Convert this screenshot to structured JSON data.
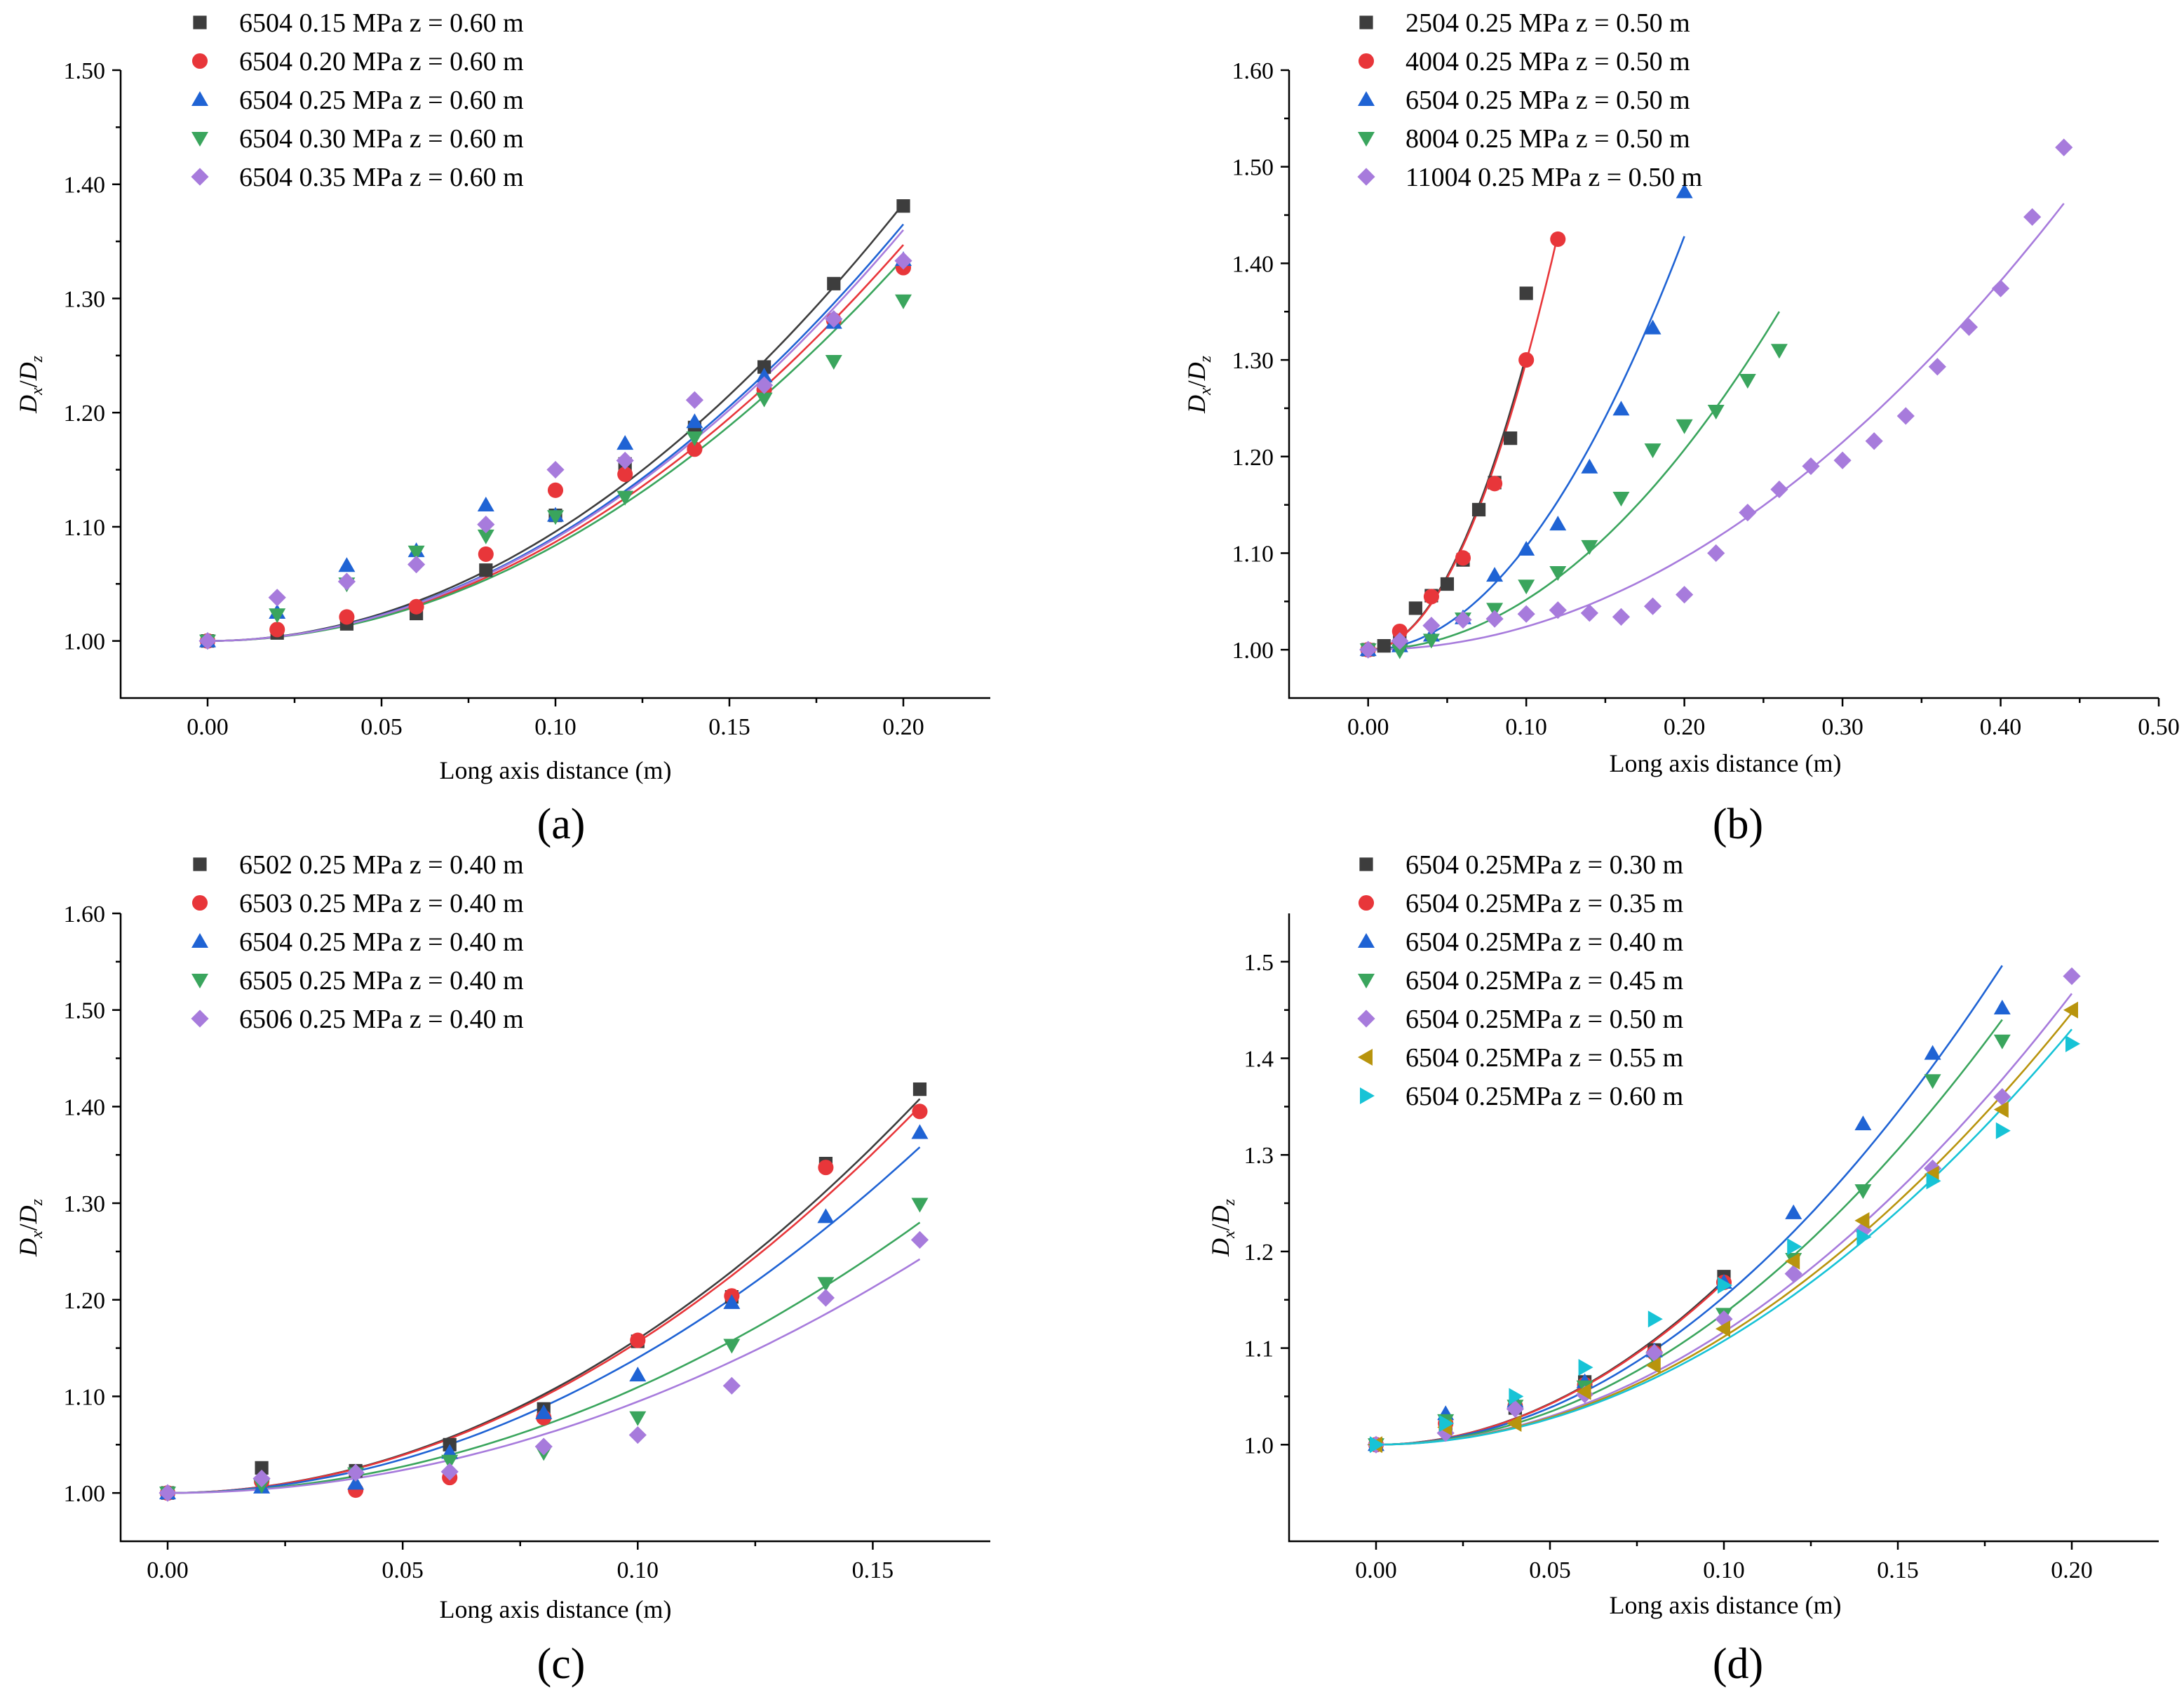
{
  "chart_data": [
    {
      "panel": "(a)",
      "type": "scatter",
      "xlabel": "Long axis distance (m)",
      "ylabel": "Dx/Dz",
      "xlim": [
        -0.025,
        0.225
      ],
      "ylim": [
        0.95,
        1.5
      ],
      "xticks": [
        "0.00",
        "0.05",
        "0.10",
        "0.15",
        "0.20"
      ],
      "xtick_values": [
        0,
        0.05,
        0.1,
        0.15,
        0.2
      ],
      "yticks": [
        "1.00",
        "1.10",
        "1.20",
        "1.30",
        "1.40",
        "1.50"
      ],
      "ytick_values": [
        1.0,
        1.1,
        1.2,
        1.3,
        1.4,
        1.5
      ],
      "x": [
        0,
        0.02,
        0.04,
        0.06,
        0.08,
        0.1,
        0.12,
        0.14,
        0.16,
        0.18,
        0.2
      ],
      "series": [
        {
          "name": "6504 0.15 MPa z = 0.60 m",
          "marker": "square",
          "color": "#3d3d3d",
          "values": [
            1.0,
            1.007,
            1.015,
            1.024,
            1.062,
            1.11,
            1.155,
            1.187,
            1.24,
            1.313,
            1.381
          ],
          "fit_end": 1.383
        },
        {
          "name": "6504 0.20 MPa z = 0.60 m",
          "marker": "circle",
          "color": "#e8363a",
          "values": [
            1.0,
            1.01,
            1.021,
            1.03,
            1.076,
            1.132,
            1.146,
            1.168,
            1.22,
            1.281,
            1.327
          ],
          "fit_end": 1.347
        },
        {
          "name": "6504 0.25 MPa z = 0.60 m",
          "marker": "triangle-up",
          "color": "#1f63d4",
          "values": [
            1.0,
            1.025,
            1.066,
            1.079,
            1.119,
            1.11,
            1.173,
            1.192,
            1.232,
            1.279,
            1.334
          ],
          "fit_end": 1.365
        },
        {
          "name": "6504 0.30 MPa z = 0.60 m",
          "marker": "triangle-down",
          "color": "#3aa55d",
          "values": [
            1.0,
            1.023,
            1.05,
            1.078,
            1.092,
            1.109,
            1.126,
            1.178,
            1.212,
            1.245,
            1.298
          ],
          "fit_end": 1.335
        },
        {
          "name": "6504 0.35 MPa z = 0.60 m",
          "marker": "diamond",
          "color": "#a77bdc",
          "values": [
            1.0,
            1.038,
            1.052,
            1.067,
            1.102,
            1.15,
            1.158,
            1.211,
            1.224,
            1.282,
            1.333
          ],
          "fit_end": 1.36
        }
      ]
    },
    {
      "panel": "(b)",
      "type": "scatter",
      "xlabel": "Long axis distance (m)",
      "ylabel": "Dx/Dz",
      "xlim": [
        -0.05,
        0.5
      ],
      "ylim": [
        0.95,
        1.6
      ],
      "xticks": [
        "0.00",
        "0.10",
        "0.20",
        "0.30",
        "0.40",
        "0.50"
      ],
      "xtick_values": [
        0,
        0.1,
        0.2,
        0.3,
        0.4,
        0.5
      ],
      "yticks": [
        "1.00",
        "1.10",
        "1.20",
        "1.30",
        "1.40",
        "1.50",
        "1.60"
      ],
      "ytick_values": [
        1.0,
        1.1,
        1.2,
        1.3,
        1.4,
        1.5,
        1.6
      ],
      "series": [
        {
          "name": "2504 0.25 MPa z = 0.50 m",
          "marker": "square",
          "color": "#3d3d3d",
          "x": [
            0,
            0.01,
            0.02,
            0.03,
            0.04,
            0.05,
            0.06,
            0.07,
            0.08,
            0.09,
            0.1
          ],
          "values": [
            1.0,
            1.004,
            1.01,
            1.043,
            1.056,
            1.068,
            1.093,
            1.145,
            1.173,
            1.219,
            1.369
          ],
          "fit_end_x": 0.1,
          "fit_end": 1.305
        },
        {
          "name": "4004 0.25 MPa z = 0.50 m",
          "marker": "circle",
          "color": "#e8363a",
          "x": [
            0,
            0.02,
            0.04,
            0.06,
            0.08,
            0.1,
            0.12
          ],
          "values": [
            1.0,
            1.019,
            1.055,
            1.095,
            1.172,
            1.3,
            1.425
          ],
          "fit_end_x": 0.12,
          "fit_end": 1.43
        },
        {
          "name": "6504 0.25 MPa z = 0.50 m",
          "marker": "triangle-up",
          "color": "#1f63d4",
          "x": [
            0,
            0.02,
            0.04,
            0.06,
            0.08,
            0.1,
            0.12,
            0.14,
            0.16,
            0.18,
            0.2
          ],
          "values": [
            1.0,
            1.004,
            1.015,
            1.033,
            1.077,
            1.104,
            1.13,
            1.189,
            1.249,
            1.333,
            1.474
          ],
          "fit_end_x": 0.2,
          "fit_end": 1.428
        },
        {
          "name": "8004 0.25 MPa z = 0.50 m",
          "marker": "triangle-down",
          "color": "#3aa55d",
          "x": [
            0,
            0.02,
            0.04,
            0.06,
            0.08,
            0.1,
            0.12,
            0.14,
            0.16,
            0.18,
            0.2,
            0.22,
            0.24,
            0.26
          ],
          "values": [
            1.0,
            0.999,
            1.01,
            1.032,
            1.042,
            1.066,
            1.08,
            1.107,
            1.157,
            1.207,
            1.232,
            1.247,
            1.279,
            1.31
          ],
          "fit_end_x": 0.26,
          "fit_end": 1.35
        },
        {
          "name": "11004 0.25 MPa z = 0.50 m",
          "marker": "diamond",
          "color": "#a77bdc",
          "x": [
            0,
            0.02,
            0.04,
            0.06,
            0.08,
            0.1,
            0.12,
            0.14,
            0.16,
            0.18,
            0.2,
            0.22,
            0.24,
            0.26,
            0.28,
            0.3,
            0.32,
            0.34,
            0.36,
            0.38,
            0.4,
            0.42,
            0.44
          ],
          "values": [
            1.0,
            1.009,
            1.025,
            1.031,
            1.032,
            1.037,
            1.041,
            1.038,
            1.034,
            1.045,
            1.057,
            1.1,
            1.142,
            1.166,
            1.19,
            1.196,
            1.216,
            1.242,
            1.293,
            1.334,
            1.374,
            1.448,
            1.52
          ],
          "fit_end_x": 0.44,
          "fit_end": 1.462
        }
      ]
    },
    {
      "panel": "(c)",
      "type": "scatter",
      "xlabel": "Long axis distance (m)",
      "ylabel": "Dx/Dz",
      "xlim": [
        -0.01,
        0.175
      ],
      "ylim": [
        0.95,
        1.6
      ],
      "xticks": [
        "0.00",
        "0.05",
        "0.10",
        "0.15"
      ],
      "xtick_values": [
        0,
        0.05,
        0.1,
        0.15
      ],
      "yticks": [
        "1.00",
        "1.10",
        "1.20",
        "1.30",
        "1.40",
        "1.50",
        "1.60"
      ],
      "ytick_values": [
        1.0,
        1.1,
        1.2,
        1.3,
        1.4,
        1.5,
        1.6
      ],
      "x": [
        0,
        0.02,
        0.04,
        0.06,
        0.08,
        0.1,
        0.12,
        0.14,
        0.16
      ],
      "series": [
        {
          "name": "6502 0.25 MPa z = 0.40 m",
          "marker": "square",
          "color": "#3d3d3d",
          "values": [
            1.0,
            1.026,
            1.023,
            1.05,
            1.087,
            1.157,
            1.203,
            1.341,
            1.418
          ],
          "fit_end": 1.408
        },
        {
          "name": "6503 0.25 MPa z = 0.40 m",
          "marker": "circle",
          "color": "#e8363a",
          "values": [
            1.0,
            1.012,
            1.003,
            1.016,
            1.078,
            1.158,
            1.204,
            1.337,
            1.395
          ],
          "fit_end": 1.4
        },
        {
          "name": "6504 0.25 MPa z = 0.40 m",
          "marker": "triangle-up",
          "color": "#1f63d4",
          "values": [
            1.0,
            1.006,
            1.01,
            1.042,
            1.083,
            1.122,
            1.197,
            1.286,
            1.373
          ],
          "fit_end": 1.358
        },
        {
          "name": "6505 0.25 MPa z = 0.40 m",
          "marker": "triangle-down",
          "color": "#3aa55d",
          "values": [
            1.0,
            1.008,
            1.02,
            1.033,
            1.042,
            1.078,
            1.153,
            1.217,
            1.299
          ],
          "fit_end": 1.28
        },
        {
          "name": "6506 0.25 MPa z = 0.40 m",
          "marker": "diamond",
          "color": "#a77bdc",
          "values": [
            1.0,
            1.015,
            1.021,
            1.022,
            1.048,
            1.06,
            1.111,
            1.202,
            1.262
          ],
          "fit_end": 1.242
        }
      ]
    },
    {
      "panel": "(d)",
      "type": "scatter",
      "xlabel": "Long axis distance (m)",
      "ylabel": "Dx/Dz",
      "xlim": [
        -0.025,
        0.225
      ],
      "ylim": [
        0.9,
        1.55
      ],
      "xticks": [
        "0.00",
        "0.05",
        "0.10",
        "0.15",
        "0.20"
      ],
      "xtick_values": [
        0,
        0.05,
        0.1,
        0.15,
        0.2
      ],
      "yticks": [
        "1.0",
        "1.1",
        "1.2",
        "1.3",
        "1.4",
        "1.5"
      ],
      "ytick_values": [
        1.0,
        1.1,
        1.2,
        1.3,
        1.4,
        1.5
      ],
      "series": [
        {
          "name": "6504 0.25MPa z = 0.30 m",
          "marker": "square",
          "color": "#3d3d3d",
          "x": [
            0,
            0.02,
            0.04,
            0.06,
            0.08,
            0.1
          ],
          "values": [
            1.0,
            1.02,
            1.038,
            1.065,
            1.098,
            1.174
          ],
          "fit_end_x": 0.1,
          "fit_end": 1.17
        },
        {
          "name": "6504 0.25MPa z = 0.35 m",
          "marker": "circle",
          "color": "#e8363a",
          "x": [
            0,
            0.02,
            0.04,
            0.06,
            0.08,
            0.1
          ],
          "values": [
            1.0,
            1.022,
            1.04,
            1.062,
            1.095,
            1.168
          ],
          "fit_end_x": 0.1,
          "fit_end": 1.168
        },
        {
          "name": "6504 0.25MPa z = 0.40 m",
          "marker": "triangle-up",
          "color": "#1f63d4",
          "x": [
            0,
            0.02,
            0.04,
            0.06,
            0.08,
            0.1,
            0.12,
            0.14,
            0.16,
            0.18
          ],
          "values": [
            1.0,
            1.032,
            1.045,
            1.065,
            1.097,
            1.168,
            1.24,
            1.332,
            1.405,
            1.452
          ],
          "fit_end_x": 0.18,
          "fit_end": 1.496
        },
        {
          "name": "6504 0.25MPa z = 0.45 m",
          "marker": "triangle-down",
          "color": "#3aa55d",
          "x": [
            0,
            0.02,
            0.04,
            0.06,
            0.08,
            0.1,
            0.12,
            0.14,
            0.16,
            0.18
          ],
          "values": [
            1.0,
            1.025,
            1.04,
            1.06,
            1.09,
            1.135,
            1.192,
            1.263,
            1.377,
            1.418
          ],
          "fit_end_x": 0.18,
          "fit_end": 1.44
        },
        {
          "name": "6504 0.25MPa z = 0.50 m",
          "marker": "diamond",
          "color": "#a77bdc",
          "x": [
            0,
            0.02,
            0.04,
            0.06,
            0.08,
            0.1,
            0.12,
            0.14,
            0.16,
            0.18,
            0.2
          ],
          "values": [
            1.0,
            1.012,
            1.037,
            1.052,
            1.095,
            1.13,
            1.177,
            1.222,
            1.286,
            1.36,
            1.485
          ],
          "fit_end_x": 0.2,
          "fit_end": 1.467
        },
        {
          "name": "6504 0.25MPa z = 0.55 m",
          "marker": "triangle-left",
          "color": "#b8940d",
          "x": [
            0,
            0.02,
            0.04,
            0.06,
            0.08,
            0.1,
            0.12,
            0.14,
            0.16,
            0.18,
            0.2
          ],
          "values": [
            1.0,
            1.018,
            1.022,
            1.055,
            1.082,
            1.12,
            1.19,
            1.232,
            1.28,
            1.347,
            1.45
          ],
          "fit_end_x": 0.2,
          "fit_end": 1.447
        },
        {
          "name": "6504 0.25MPa z = 0.60 m",
          "marker": "triangle-right",
          "color": "#17c3d6",
          "x": [
            0,
            0.02,
            0.04,
            0.06,
            0.08,
            0.1,
            0.12,
            0.14,
            0.16,
            0.18,
            0.2
          ],
          "values": [
            1.0,
            1.022,
            1.05,
            1.08,
            1.13,
            1.165,
            1.205,
            1.215,
            1.273,
            1.325,
            1.415
          ],
          "fit_end_x": 0.2,
          "fit_end": 1.43
        }
      ]
    }
  ]
}
